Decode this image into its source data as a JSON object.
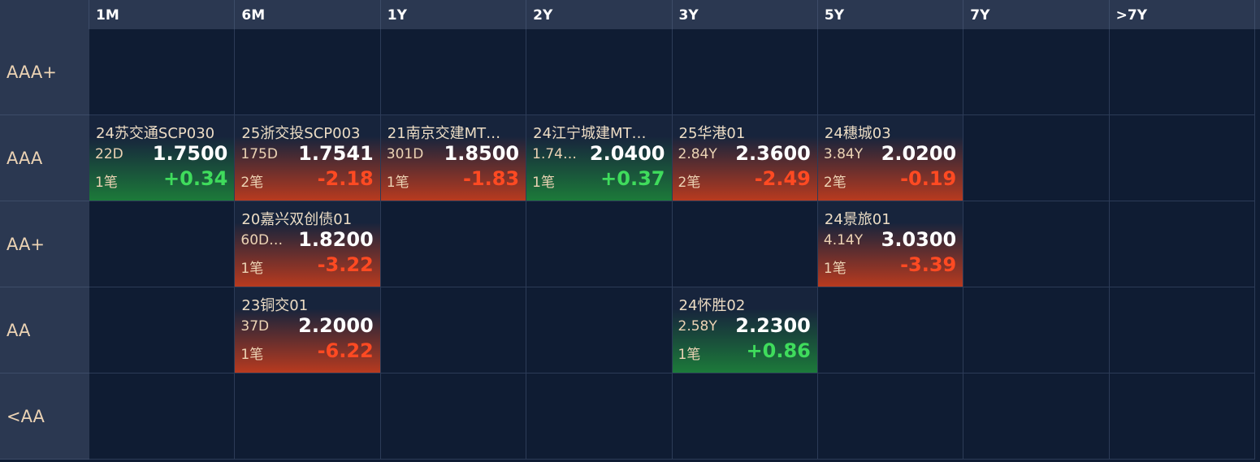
{
  "grid": {
    "columns": [
      "1M",
      "6M",
      "1Y",
      "2Y",
      "3Y",
      "5Y",
      "7Y",
      ">7Y"
    ],
    "rows": [
      {
        "label": "AAA+",
        "cells": [
          null,
          null,
          null,
          null,
          null,
          null,
          null,
          null
        ]
      },
      {
        "label": "AAA",
        "cells": [
          {
            "name": "24苏交通SCP030",
            "term": "22D",
            "price": "1.7500",
            "count": "1笔",
            "change": "+0.34"
          },
          {
            "name": "25浙交投SCP003",
            "term": "175D",
            "price": "1.7541",
            "count": "2笔",
            "change": "-2.18"
          },
          {
            "name": "21南京交建MT…",
            "term": "301D",
            "price": "1.8500",
            "count": "1笔",
            "change": "-1.83"
          },
          {
            "name": "24江宁城建MT…",
            "term": "1.74…",
            "price": "2.0400",
            "count": "1笔",
            "change": "+0.37"
          },
          {
            "name": "25华港01",
            "term": "2.84Y",
            "price": "2.3600",
            "count": "2笔",
            "change": "-2.49"
          },
          {
            "name": "24穗城03",
            "term": "3.84Y",
            "price": "2.0200",
            "count": "2笔",
            "change": "-0.19"
          },
          null,
          null
        ]
      },
      {
        "label": "AA+",
        "cells": [
          null,
          {
            "name": "20嘉兴双创债01",
            "term": "60D…",
            "price": "1.8200",
            "count": "1笔",
            "change": "-3.22"
          },
          null,
          null,
          null,
          {
            "name": "24景旅01",
            "term": "4.14Y",
            "price": "3.0300",
            "count": "1笔",
            "change": "-3.39"
          },
          null,
          null
        ]
      },
      {
        "label": "AA",
        "cells": [
          null,
          {
            "name": "23铜交01",
            "term": "37D",
            "price": "2.2000",
            "count": "1笔",
            "change": "-6.22"
          },
          null,
          null,
          {
            "name": "24怀胜02",
            "term": "2.58Y",
            "price": "2.2300",
            "count": "1笔",
            "change": "+0.86"
          },
          null,
          null,
          null
        ]
      },
      {
        "label": "<AA",
        "cells": [
          null,
          null,
          null,
          null,
          null,
          null,
          null,
          null
        ]
      }
    ]
  }
}
